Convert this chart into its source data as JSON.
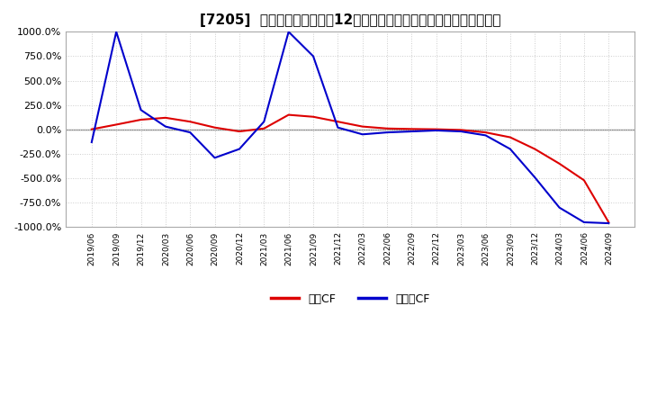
{
  "title": "[7205]  キャッシュフローの12か月移動合計の対前年同期増減率の推移",
  "title_fontsize": 11,
  "legend_labels": [
    "営業CF",
    "フリーCF"
  ],
  "color_op": "#dd0000",
  "color_fr": "#0000cc",
  "ylim": [
    -1000,
    1000
  ],
  "yticks": [
    -1000,
    -750,
    -500,
    -250,
    0,
    250,
    500,
    750,
    1000
  ],
  "bg_color": "#ffffff",
  "plot_bg_color": "#ffffff",
  "grid_color": "#cccccc",
  "dates": [
    "2019/06",
    "2019/09",
    "2019/12",
    "2020/03",
    "2020/06",
    "2020/09",
    "2020/12",
    "2021/03",
    "2021/06",
    "2021/09",
    "2021/12",
    "2022/03",
    "2022/06",
    "2022/09",
    "2022/12",
    "2023/03",
    "2023/06",
    "2023/09",
    "2023/12",
    "2024/03",
    "2024/06",
    "2024/09"
  ],
  "operating_cf": [
    2,
    50,
    100,
    120,
    80,
    20,
    -20,
    10,
    150,
    130,
    80,
    30,
    10,
    5,
    2,
    -5,
    -30,
    -80,
    -200,
    -350,
    -520,
    -950
  ],
  "free_cf": [
    -130,
    1000,
    200,
    30,
    -30,
    -290,
    -200,
    80,
    1000,
    750,
    20,
    -50,
    -30,
    -20,
    -10,
    -20,
    -60,
    -200,
    -490,
    -800,
    -950,
    -960
  ]
}
